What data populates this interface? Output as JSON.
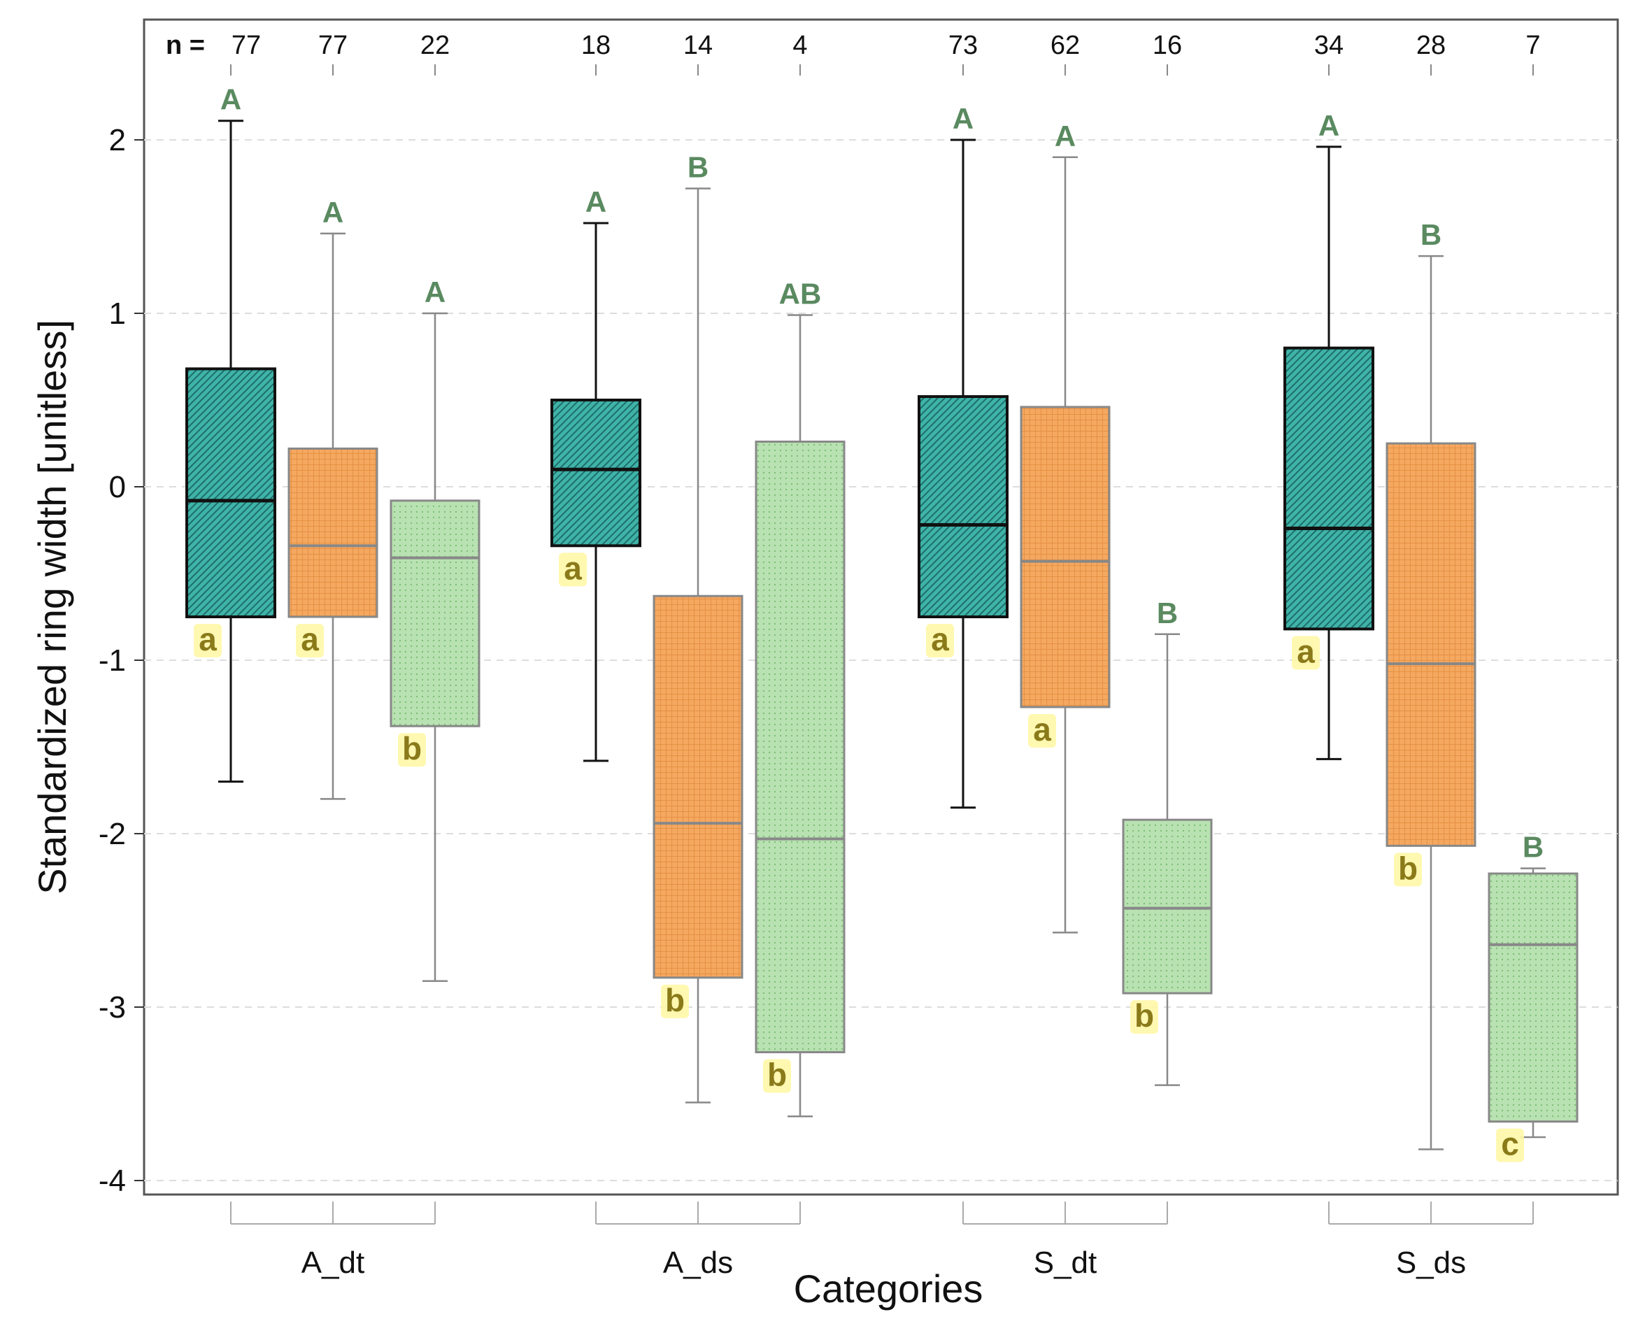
{
  "chart_data": {
    "type": "boxplot",
    "xlabel": "Categories",
    "ylabel": "Standardized ring width [unitless]",
    "ylim": [
      -4.05,
      2.7
    ],
    "yticks": [
      2,
      1,
      0,
      -1,
      -2,
      -3,
      -4
    ],
    "ytick_labels": [
      "2",
      "1",
      "0",
      "-1",
      "-2",
      "-3",
      "-4"
    ],
    "grid": "horizontal dashed",
    "n_prefix": "n =",
    "categories": [
      "A_dt",
      "A_ds",
      "S_dt",
      "S_ds"
    ],
    "series_styles": [
      {
        "fill": "#3fb3a8",
        "edge": "#111111",
        "median": "#111111",
        "pattern": "diagonal"
      },
      {
        "fill": "#f5a860",
        "edge": "#888888",
        "median": "#888888",
        "pattern": "grid"
      },
      {
        "fill": "#b9e2b2",
        "edge": "#888888",
        "median": "#888888",
        "pattern": "dots"
      }
    ],
    "colors": {
      "upper_letter": "#5a8a60",
      "lower_letter": "#8a7a1a",
      "lower_letter_bg": "#fff7a8"
    },
    "groups": [
      {
        "category": "A_dt",
        "boxes": [
          {
            "n": "77",
            "min": -1.7,
            "q1": -0.75,
            "median": -0.08,
            "q3": 0.68,
            "max": 2.11,
            "upper_letter": "A",
            "lower_letter": "a"
          },
          {
            "n": "77",
            "min": -1.8,
            "q1": -0.75,
            "median": -0.34,
            "q3": 0.22,
            "max": 1.46,
            "upper_letter": "A",
            "lower_letter": "a"
          },
          {
            "n": "22",
            "min": -2.85,
            "q1": -1.38,
            "median": -0.41,
            "q3": -0.08,
            "max": 1.0,
            "upper_letter": "A",
            "lower_letter": "b"
          }
        ]
      },
      {
        "category": "A_ds",
        "boxes": [
          {
            "n": "18",
            "min": -1.58,
            "q1": -0.34,
            "median": 0.1,
            "q3": 0.5,
            "max": 1.52,
            "upper_letter": "A",
            "lower_letter": "a"
          },
          {
            "n": "14",
            "min": -3.55,
            "q1": -2.83,
            "median": -1.94,
            "q3": -0.63,
            "max": 1.72,
            "upper_letter": "B",
            "lower_letter": "b"
          },
          {
            "n": "4",
            "min": -3.63,
            "q1": -3.26,
            "median": -2.03,
            "q3": 0.26,
            "max": 0.99,
            "upper_letter": "AB",
            "lower_letter": "b"
          }
        ]
      },
      {
        "category": "S_dt",
        "boxes": [
          {
            "n": "73",
            "min": -1.85,
            "q1": -0.75,
            "median": -0.22,
            "q3": 0.52,
            "max": 2.0,
            "upper_letter": "A",
            "lower_letter": "a"
          },
          {
            "n": "62",
            "min": -2.57,
            "q1": -1.27,
            "median": -0.43,
            "q3": 0.46,
            "max": 1.9,
            "upper_letter": "A",
            "lower_letter": "a"
          },
          {
            "n": "16",
            "min": -3.45,
            "q1": -2.92,
            "median": -2.43,
            "q3": -1.92,
            "max": -0.85,
            "upper_letter": "B",
            "lower_letter": "b"
          }
        ]
      },
      {
        "category": "S_ds",
        "boxes": [
          {
            "n": "34",
            "min": -1.57,
            "q1": -0.82,
            "median": -0.24,
            "q3": 0.8,
            "max": 1.96,
            "upper_letter": "A",
            "lower_letter": "a"
          },
          {
            "n": "28",
            "min": -3.82,
            "q1": -2.07,
            "median": -1.02,
            "q3": 0.25,
            "max": 1.33,
            "upper_letter": "B",
            "lower_letter": "b"
          },
          {
            "n": "7",
            "min": -3.75,
            "q1": -3.66,
            "median": -2.64,
            "q3": -2.23,
            "max": -2.2,
            "upper_letter": "B",
            "lower_letter": "c"
          }
        ]
      }
    ]
  }
}
